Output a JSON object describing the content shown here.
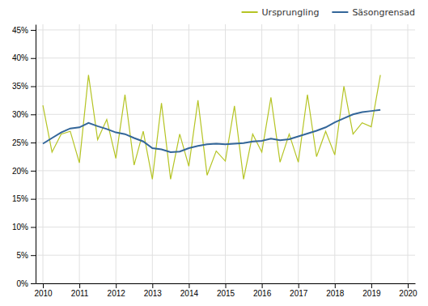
{
  "chart_data": {
    "type": "line",
    "x": [
      2010,
      2010.25,
      2010.5,
      2010.75,
      2011,
      2011.25,
      2011.5,
      2011.75,
      2012,
      2012.25,
      2012.5,
      2012.75,
      2013,
      2013.25,
      2013.5,
      2013.75,
      2014,
      2014.25,
      2014.5,
      2014.75,
      2015,
      2015.25,
      2015.5,
      2015.75,
      2016,
      2016.25,
      2016.5,
      2016.75,
      2017,
      2017.25,
      2017.5,
      2017.75,
      2018,
      2018.25,
      2018.5,
      2018.75,
      2019,
      2019.25
    ],
    "series": [
      {
        "name": "Ursprungling",
        "color": "#b5c424",
        "values": [
          0.316,
          0.233,
          0.265,
          0.27,
          0.214,
          0.37,
          0.255,
          0.291,
          0.222,
          0.335,
          0.21,
          0.27,
          0.185,
          0.32,
          0.185,
          0.265,
          0.208,
          0.325,
          0.192,
          0.235,
          0.217,
          0.315,
          0.185,
          0.265,
          0.233,
          0.33,
          0.215,
          0.265,
          0.215,
          0.335,
          0.225,
          0.27,
          0.228,
          0.35,
          0.265,
          0.285,
          0.278,
          0.37
        ]
      },
      {
        "name": "Säsongrensad",
        "color": "#336699",
        "values": [
          0.248,
          0.258,
          0.268,
          0.275,
          0.277,
          0.285,
          0.279,
          0.274,
          0.268,
          0.265,
          0.258,
          0.252,
          0.24,
          0.238,
          0.233,
          0.234,
          0.24,
          0.244,
          0.247,
          0.248,
          0.247,
          0.248,
          0.249,
          0.252,
          0.253,
          0.257,
          0.254,
          0.256,
          0.261,
          0.266,
          0.271,
          0.277,
          0.286,
          0.293,
          0.3,
          0.304,
          0.306,
          0.308
        ]
      }
    ],
    "xlim": [
      2009.8,
      2020.2
    ],
    "xticks": [
      2010,
      2011,
      2012,
      2013,
      2014,
      2015,
      2016,
      2017,
      2018,
      2019,
      2020
    ],
    "ylim": [
      0,
      0.46
    ],
    "yticks": [
      {
        "value": 0.0,
        "label": "0%"
      },
      {
        "value": 0.05,
        "label": "5%"
      },
      {
        "value": 0.1,
        "label": "10%"
      },
      {
        "value": 0.15,
        "label": "15%"
      },
      {
        "value": 0.2,
        "label": "20%"
      },
      {
        "value": 0.25,
        "label": "25%"
      },
      {
        "value": 0.3,
        "label": "30%"
      },
      {
        "value": 0.35,
        "label": "35%"
      },
      {
        "value": 0.4,
        "label": "40%"
      },
      {
        "value": 0.45,
        "label": "45%"
      }
    ],
    "grid": true,
    "legend": "upper right"
  }
}
